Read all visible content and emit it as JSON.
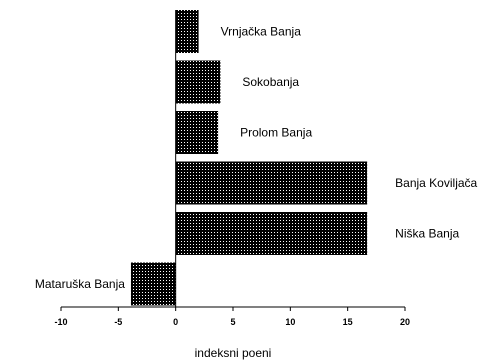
{
  "chart_data": {
    "type": "bar",
    "orientation": "horizontal",
    "categories": [
      "Vrnjačka Banja",
      "Sokobanja",
      "Prolom Banja",
      "Banja Koviljača",
      "Niška Banja",
      "Mataruška Banja"
    ],
    "values": [
      2,
      3.9,
      3.7,
      16.7,
      16.7,
      -3.9
    ],
    "xlabel": "indeksni poeni",
    "ylabel": "",
    "xlim": [
      -10,
      20
    ],
    "xticks": [
      -10,
      -5,
      0,
      5,
      10,
      15,
      20
    ],
    "xtick_labels": [
      "-10",
      "-5",
      "0",
      "5",
      "10",
      "15",
      "20"
    ],
    "grid": false,
    "bar_fill": "dotted black texture",
    "bar_color": "#000000"
  }
}
